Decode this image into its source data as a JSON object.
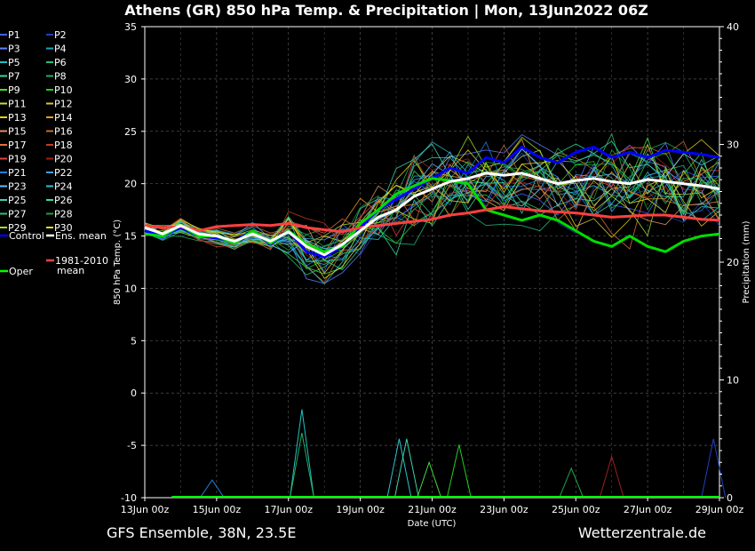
{
  "title": "Athens  (GR)  850 hPa Temp. & Precipitation | Mon, 13Jun2022 06Z",
  "footer_left": "GFS Ensemble, 38N, 23.5E",
  "footer_right": "Wetterzentrale.de",
  "chart_data": {
    "type": "line",
    "xlabel": "Date (UTC)",
    "ylabel": "850 hPa Temp. (°C)",
    "y2label": "Precipitation (mm)",
    "ylim": [
      -10,
      35
    ],
    "y2lim": [
      0,
      40
    ],
    "yticks": [
      "35",
      "30",
      "25",
      "20",
      "15",
      "10",
      "5",
      "0",
      "-5",
      "-10"
    ],
    "y2ticks": [
      "40",
      "30",
      "20",
      "10",
      "0"
    ],
    "xlim_hours": [
      0,
      384
    ],
    "x_tick_labels": [
      "13Jun 00z",
      "15Jun 00z",
      "17Jun 00z",
      "19Jun 00z",
      "21Jun 00z",
      "23Jun 00z",
      "25Jun 00z",
      "27Jun 00z",
      "29Jun 00z"
    ],
    "grid": true,
    "legend_members": [
      {
        "name": "P1",
        "color": "#4060ff"
      },
      {
        "name": "P2",
        "color": "#2040c0"
      },
      {
        "name": "P3",
        "color": "#6080ff"
      },
      {
        "name": "P4",
        "color": "#20a0c0"
      },
      {
        "name": "P5",
        "color": "#20c0c0"
      },
      {
        "name": "P6",
        "color": "#20c080"
      },
      {
        "name": "P7",
        "color": "#40d0a0"
      },
      {
        "name": "P8",
        "color": "#20b060"
      },
      {
        "name": "P9",
        "color": "#40e040"
      },
      {
        "name": "P10",
        "color": "#20d020"
      },
      {
        "name": "P11",
        "color": "#c0e040"
      },
      {
        "name": "P12",
        "color": "#e0c040"
      },
      {
        "name": "P13",
        "color": "#e0d020"
      },
      {
        "name": "P14",
        "color": "#f0a020"
      },
      {
        "name": "P15",
        "color": "#e09060"
      },
      {
        "name": "P16",
        "color": "#c07030"
      },
      {
        "name": "P17",
        "color": "#e07040"
      },
      {
        "name": "P18",
        "color": "#c04020"
      },
      {
        "name": "P19",
        "color": "#e04040"
      },
      {
        "name": "P20",
        "color": "#a02020"
      },
      {
        "name": "P21",
        "color": "#2080e0"
      },
      {
        "name": "P22",
        "color": "#40a0ff"
      },
      {
        "name": "P23",
        "color": "#60c0ff"
      },
      {
        "name": "P24",
        "color": "#30c0d0"
      },
      {
        "name": "P25",
        "color": "#40d0b0"
      },
      {
        "name": "P26",
        "color": "#30e0a0"
      },
      {
        "name": "P27",
        "color": "#30c070"
      },
      {
        "name": "P28",
        "color": "#20a040"
      },
      {
        "name": "P29",
        "color": "#a0e030"
      },
      {
        "name": "P30",
        "color": "#e0e020"
      }
    ],
    "legend_special": [
      {
        "name": "Control",
        "color": "#0000ff"
      },
      {
        "name": "Ens. mean",
        "color": "#ffffff"
      },
      {
        "name": "Oper",
        "color": "#00ff00"
      },
      {
        "name": "1981-2010",
        "name2": "mean",
        "color": "#ff4040"
      }
    ],
    "series": [
      {
        "name": "Control",
        "x": [
          0,
          12,
          24,
          36,
          48,
          60,
          72,
          84,
          96,
          108,
          120,
          132,
          144,
          156,
          168,
          180,
          192,
          204,
          216,
          228,
          240,
          252,
          264,
          276,
          288,
          300,
          312,
          324,
          336,
          348,
          360,
          372,
          384
        ],
        "values": [
          15.5,
          15.0,
          15.8,
          15.0,
          14.8,
          14.5,
          15.5,
          14.2,
          15.5,
          13.5,
          13.0,
          14.0,
          15.8,
          17.5,
          18.5,
          19.5,
          20.5,
          21.5,
          21.0,
          22.5,
          22.0,
          23.5,
          22.5,
          22.0,
          23.0,
          23.5,
          22.5,
          23.0,
          22.5,
          23.2,
          23.0,
          22.8,
          22.5
        ]
      },
      {
        "name": "Ens. mean",
        "x": [
          0,
          12,
          24,
          36,
          48,
          60,
          72,
          84,
          96,
          108,
          120,
          132,
          144,
          156,
          168,
          180,
          192,
          204,
          216,
          228,
          240,
          252,
          264,
          276,
          288,
          300,
          312,
          324,
          336,
          348,
          360,
          372,
          384
        ],
        "values": [
          15.8,
          15.2,
          16.0,
          15.2,
          15.0,
          14.5,
          15.2,
          14.5,
          15.4,
          14.0,
          13.2,
          14.2,
          15.5,
          16.8,
          17.5,
          18.8,
          19.5,
          20.2,
          20.5,
          21.0,
          20.8,
          21.0,
          20.5,
          20.0,
          20.3,
          20.5,
          20.2,
          20.0,
          20.4,
          20.2,
          20.0,
          19.8,
          19.5
        ]
      },
      {
        "name": "Oper",
        "x": [
          0,
          12,
          24,
          36,
          48,
          60,
          72,
          84,
          96,
          108,
          120,
          132,
          144,
          156,
          168,
          180,
          192,
          204,
          216,
          228,
          240,
          252,
          264,
          276,
          288,
          300,
          312,
          324,
          336,
          348,
          360,
          372,
          384
        ],
        "values": [
          15.2,
          15.0,
          16.0,
          15.0,
          15.0,
          14.3,
          15.5,
          14.3,
          15.5,
          14.2,
          13.5,
          14.0,
          16.2,
          17.5,
          19.0,
          19.8,
          20.5,
          20.3,
          20.0,
          17.5,
          17.0,
          16.5,
          17.0,
          16.5,
          15.5,
          14.5,
          14.0,
          15.0,
          14.0,
          13.5,
          14.5,
          15.0,
          15.2
        ]
      },
      {
        "name": "1981-2010 mean",
        "x": [
          0,
          12,
          24,
          36,
          48,
          60,
          72,
          84,
          96,
          108,
          120,
          132,
          144,
          156,
          168,
          180,
          192,
          204,
          216,
          228,
          240,
          252,
          264,
          276,
          288,
          300,
          312,
          324,
          336,
          348,
          360,
          372,
          384
        ],
        "values": [
          16.0,
          15.8,
          15.9,
          15.5,
          15.9,
          16.0,
          16.1,
          16.0,
          16.2,
          15.8,
          15.6,
          15.4,
          15.8,
          16.0,
          16.2,
          16.4,
          16.6,
          17.0,
          17.2,
          17.5,
          17.8,
          17.6,
          17.4,
          17.3,
          17.2,
          17.0,
          16.8,
          16.9,
          17.0,
          17.0,
          16.8,
          16.6,
          16.5
        ]
      }
    ],
    "precip_spikes": [
      {
        "color": "#20c0c0",
        "x": 105,
        "mm": 7.5
      },
      {
        "color": "#20b060",
        "x": 105,
        "mm": 5.5
      },
      {
        "color": "#30c0d0",
        "x": 170,
        "mm": 5.0
      },
      {
        "color": "#40d0b0",
        "x": 175,
        "mm": 5.0
      },
      {
        "color": "#20d020",
        "x": 210,
        "mm": 4.5
      },
      {
        "color": "#a02020",
        "x": 312,
        "mm": 3.5
      },
      {
        "color": "#20a040",
        "x": 285,
        "mm": 2.5
      },
      {
        "color": "#2040c0",
        "x": 380,
        "mm": 5.0
      },
      {
        "color": "#40e040",
        "x": 190,
        "mm": 3.0
      },
      {
        "color": "#2080e0",
        "x": 45,
        "mm": 1.5
      }
    ]
  }
}
